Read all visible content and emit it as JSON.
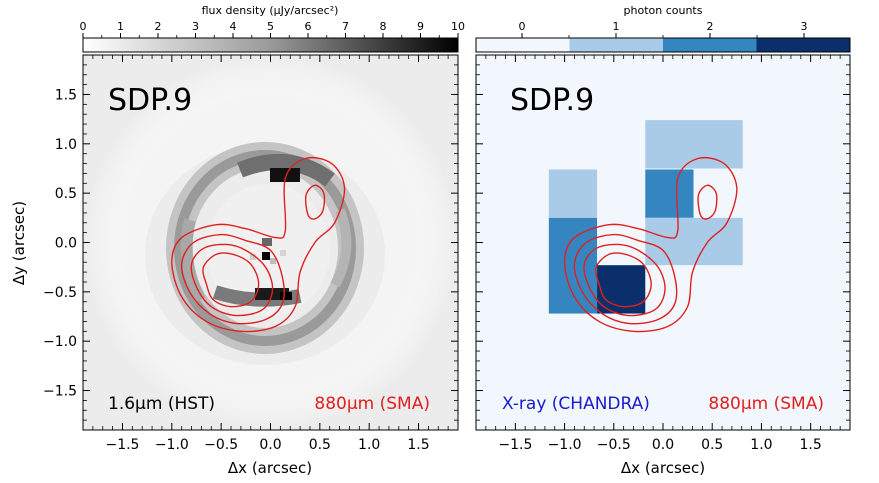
{
  "chart_data": [
    {
      "type": "heatmap",
      "panel": "left",
      "title": "SDP.9",
      "colorbar": {
        "label": "flux density (μJy/arcsec²)",
        "ticks": [
          "0",
          "1",
          "2",
          "3",
          "4",
          "5",
          "6",
          "7",
          "8",
          "9",
          "10"
        ],
        "range": [
          0,
          10
        ],
        "colormap": "greys"
      },
      "xlabel": "Δx (arcsec)",
      "ylabel": "Δy (arcsec)",
      "xlim": [
        -1.9,
        1.9
      ],
      "ylim": [
        -1.9,
        1.9
      ],
      "xticks": [
        "−1.5",
        "−1.0",
        "−0.5",
        "0.0",
        "0.5",
        "1.0",
        "1.5"
      ],
      "yticks": [
        "1.5",
        "1.0",
        "0.5",
        "0.0",
        "−0.5",
        "−1.0",
        "−1.5"
      ],
      "image_label": "1.6μm (HST)",
      "contour_label": "880μm (SMA)",
      "ring": {
        "center": [
          0.0,
          -0.1
        ],
        "radius": 0.85,
        "peaks": [
          {
            "x": 0.2,
            "y": 0.7,
            "value": 9
          },
          {
            "x": 0.15,
            "y": -0.52,
            "value": 8
          }
        ]
      }
    },
    {
      "type": "heatmap",
      "panel": "right",
      "title": "SDP.9",
      "colorbar": {
        "label": "photon counts",
        "ticks": [
          "0",
          "1",
          "2",
          "3"
        ],
        "levels": [
          0,
          1,
          2,
          3
        ],
        "colors": [
          "#f2f7fd",
          "#a9cbe7",
          "#3585c0",
          "#0a2f6b"
        ]
      },
      "xlabel": "Δx (arcsec)",
      "xlim": [
        -1.9,
        1.9
      ],
      "ylim": [
        -1.9,
        1.9
      ],
      "xticks": [
        "−1.5",
        "−1.0",
        "−0.5",
        "0.0",
        "0.5",
        "1.0",
        "1.5"
      ],
      "image_label": "X-ray (CHANDRA)",
      "contour_label": "880μm (SMA)",
      "pixels": [
        {
          "x0": -1.16,
          "x1": -0.67,
          "y0": 0.25,
          "y1": 0.74,
          "counts": 1
        },
        {
          "x0": -1.16,
          "x1": -0.67,
          "y0": -0.72,
          "y1": 0.25,
          "counts": 2
        },
        {
          "x0": -0.67,
          "x1": -0.18,
          "y0": -0.72,
          "y1": -0.23,
          "counts": 3
        },
        {
          "x0": -0.18,
          "x1": 0.81,
          "y0": 0.75,
          "y1": 1.24,
          "counts": 1
        },
        {
          "x0": -0.18,
          "x1": 0.31,
          "y0": 0.25,
          "y1": 0.74,
          "counts": 2
        },
        {
          "x0": -0.18,
          "x1": 0.81,
          "y0": -0.23,
          "y1": 0.25,
          "counts": 1
        }
      ]
    }
  ],
  "contour_color": "#e02020",
  "label_color_xray": "#1a1acc"
}
